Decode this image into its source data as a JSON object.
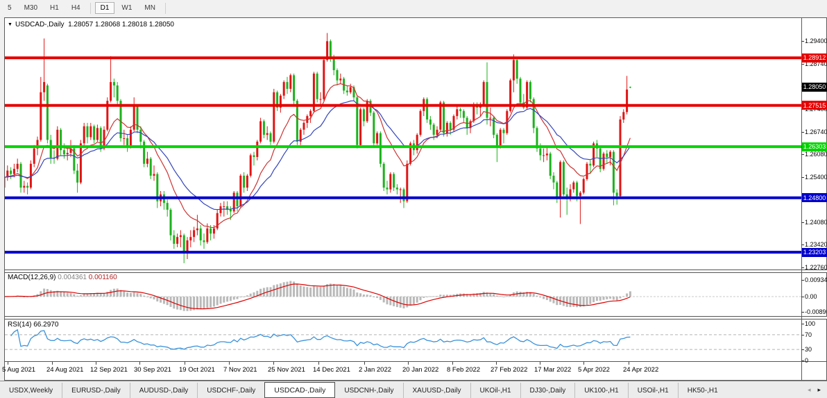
{
  "toolbar": {
    "timeframes": [
      {
        "label": "5",
        "active": false
      },
      {
        "label": "M30",
        "active": false
      },
      {
        "label": "H1",
        "active": false
      },
      {
        "label": "H4",
        "active": false
      },
      {
        "label": "D1",
        "active": true
      },
      {
        "label": "W1",
        "active": false
      },
      {
        "label": "MN",
        "active": false
      }
    ]
  },
  "icons": {
    "symbol_dropdown": "▼",
    "tabs_scroll_left": "◂",
    "tabs_scroll_right": "▸"
  },
  "chart": {
    "title_text": "USDCAD-,Daily",
    "ohlc_text": "1.28057 1.28068 1.28018 1.28050"
  },
  "tabs": {
    "items": [
      {
        "label": "USDX,Weekly",
        "active": false
      },
      {
        "label": "EURUSD-,Daily",
        "active": false
      },
      {
        "label": "AUDUSD-,Daily",
        "active": false
      },
      {
        "label": "USDCHF-,Daily",
        "active": false
      },
      {
        "label": "USDCAD-,Daily",
        "active": true
      },
      {
        "label": "USDCNH-,Daily",
        "active": false
      },
      {
        "label": "XAUUSD-,Daily",
        "active": false
      },
      {
        "label": "UKOil-,H1",
        "active": false
      },
      {
        "label": "DJ30-,Daily",
        "active": false
      },
      {
        "label": "UK100-,H1",
        "active": false
      },
      {
        "label": "USOil-,H1",
        "active": false
      },
      {
        "label": "HK50-,H1",
        "active": false
      }
    ]
  },
  "chart_data": {
    "type": "candlestick",
    "symbol": "USDCAD-",
    "timeframe": "Daily",
    "last_bar_ohlc": {
      "open": 1.28057,
      "high": 1.28068,
      "low": 1.28018,
      "close": 1.2805
    },
    "colors": {
      "bull_candle": "#e01414",
      "bear_candle": "#1cb21c",
      "ma_fast": "#cc3333",
      "ma_slow": "#3344bb",
      "macd_histogram": "#b9b9b9",
      "macd_signal": "#dd0000",
      "rsi_line": "#3a92da",
      "level_red": "#e60000",
      "level_green": "#00d400",
      "level_blue": "#0000cc",
      "current_price_badge": "#000000"
    },
    "price_axis_ticks": [
      "1.29400",
      "1.28740",
      "1.28080",
      "1.27400",
      "1.26740",
      "1.26080",
      "1.25400",
      "1.24740",
      "1.24080",
      "1.23420",
      "1.22760"
    ],
    "levels": [
      {
        "label": "1.28912",
        "value": 1.28912,
        "color": "#e60000"
      },
      {
        "label": "1.27515",
        "value": 1.27515,
        "color": "#e60000"
      },
      {
        "label": "1.26303",
        "value": 1.26303,
        "color": "#00d400"
      },
      {
        "label": "1.24800",
        "value": 1.248,
        "color": "#0000cc"
      },
      {
        "label": "1.23203",
        "value": 1.23203,
        "color": "#0000cc"
      }
    ],
    "current_price": {
      "label": "1.28050",
      "value": 1.2805
    },
    "date_labels": [
      "5 Aug 2021",
      "24 Aug 2021",
      "12 Sep 2021",
      "30 Sep 2021",
      "19 Oct 2021",
      "7 Nov 2021",
      "25 Nov 2021",
      "14 Dec 2021",
      "2 Jan 2022",
      "20 Jan 2022",
      "8 Feb 2022",
      "27 Feb 2022",
      "17 Mar 2022",
      "5 Apr 2022",
      "24 Apr 2022"
    ],
    "overlays": [
      {
        "name": "ma-fast",
        "method": "ema",
        "period": 13,
        "color": "#cc3333"
      },
      {
        "name": "ma-slow",
        "method": "ema",
        "period": 26,
        "color": "#3344bb"
      }
    ],
    "indicators": [
      {
        "name": "MACD",
        "label": "MACD(12,26,9)",
        "params": [
          12,
          26,
          9
        ],
        "value_main": "0.004361",
        "value_signal": "0.001160",
        "axis": {
          "top": "0.009345",
          "zero": "0.00",
          "bottom": "-0.008907"
        },
        "axis_values": {
          "top": 0.009345,
          "zero": 0,
          "bottom": -0.008907
        }
      },
      {
        "name": "RSI",
        "label": "RSI(14)",
        "params": [
          14
        ],
        "value": "66.2970",
        "axis": [
          "100",
          "70",
          "30",
          "0"
        ],
        "axis_values": [
          100,
          70,
          30,
          0
        ],
        "dashed_levels": [
          70,
          30
        ]
      }
    ],
    "candles": [
      [
        1.251,
        1.2555,
        1.25,
        1.254
      ],
      [
        1.254,
        1.2575,
        1.253,
        1.256
      ],
      [
        1.256,
        1.257,
        1.2535,
        1.255
      ],
      [
        1.255,
        1.258,
        1.254,
        1.2565
      ],
      [
        1.2565,
        1.2595,
        1.2555,
        1.258
      ],
      [
        1.258,
        1.2585,
        1.2495,
        1.251
      ],
      [
        1.251,
        1.253,
        1.2495,
        1.2515
      ],
      [
        1.2515,
        1.2525,
        1.249,
        1.251
      ],
      [
        1.251,
        1.259,
        1.2505,
        1.258
      ],
      [
        1.258,
        1.2635,
        1.257,
        1.2625
      ],
      [
        1.2625,
        1.266,
        1.2605,
        1.265
      ],
      [
        1.265,
        1.2835,
        1.2645,
        1.279
      ],
      [
        1.279,
        1.2948,
        1.2765,
        1.282
      ],
      [
        1.281,
        1.2815,
        1.264,
        1.265
      ],
      [
        1.265,
        1.2665,
        1.258,
        1.2598
      ],
      [
        1.2598,
        1.262,
        1.258,
        1.2595
      ],
      [
        1.2595,
        1.269,
        1.259,
        1.268
      ],
      [
        1.268,
        1.2685,
        1.2605,
        1.262
      ],
      [
        1.262,
        1.264,
        1.2595,
        1.2608
      ],
      [
        1.2608,
        1.263,
        1.259,
        1.2612
      ],
      [
        1.2612,
        1.265,
        1.26,
        1.2625
      ],
      [
        1.2625,
        1.2635,
        1.255,
        1.256
      ],
      [
        1.256,
        1.258,
        1.2495,
        1.2525
      ],
      [
        1.2525,
        1.265,
        1.252,
        1.264
      ],
      [
        1.264,
        1.27,
        1.263,
        1.269
      ],
      [
        1.269,
        1.27,
        1.264,
        1.2658
      ],
      [
        1.2658,
        1.27,
        1.265,
        1.269
      ],
      [
        1.269,
        1.2695,
        1.264,
        1.265
      ],
      [
        1.265,
        1.2695,
        1.2645,
        1.2685
      ],
      [
        1.2685,
        1.269,
        1.2615,
        1.2625
      ],
      [
        1.2625,
        1.269,
        1.262,
        1.268
      ],
      [
        1.268,
        1.2775,
        1.2675,
        1.2765
      ],
      [
        1.2765,
        1.2896,
        1.276,
        1.282
      ],
      [
        1.282,
        1.283,
        1.2775,
        1.281
      ],
      [
        1.281,
        1.282,
        1.275,
        1.2765
      ],
      [
        1.2765,
        1.277,
        1.2645,
        1.2655
      ],
      [
        1.2655,
        1.268,
        1.2635,
        1.2655
      ],
      [
        1.2655,
        1.2665,
        1.2615,
        1.263
      ],
      [
        1.263,
        1.269,
        1.2625,
        1.268
      ],
      [
        1.268,
        1.2775,
        1.2675,
        1.275
      ],
      [
        1.275,
        1.2755,
        1.267,
        1.268
      ],
      [
        1.268,
        1.269,
        1.2625,
        1.2645
      ],
      [
        1.2645,
        1.265,
        1.257,
        1.258
      ],
      [
        1.258,
        1.2615,
        1.257,
        1.2595
      ],
      [
        1.2595,
        1.26,
        1.2535,
        1.2545
      ],
      [
        1.2545,
        1.2575,
        1.253,
        1.255
      ],
      [
        1.255,
        1.2555,
        1.245,
        1.247
      ],
      [
        1.247,
        1.25,
        1.2455,
        1.249
      ],
      [
        1.249,
        1.25,
        1.2445,
        1.2465
      ],
      [
        1.2465,
        1.2475,
        1.2425,
        1.2445
      ],
      [
        1.2445,
        1.245,
        1.2355,
        1.237
      ],
      [
        1.237,
        1.2385,
        1.233,
        1.2345
      ],
      [
        1.2345,
        1.2375,
        1.2335,
        1.2365
      ],
      [
        1.2365,
        1.2385,
        1.2335,
        1.237
      ],
      [
        1.237,
        1.2375,
        1.2288,
        1.232
      ],
      [
        1.232,
        1.2365,
        1.23,
        1.2355
      ],
      [
        1.2355,
        1.2385,
        1.2335,
        1.2365
      ],
      [
        1.2365,
        1.2395,
        1.235,
        1.2385
      ],
      [
        1.2385,
        1.243,
        1.237,
        1.239
      ],
      [
        1.239,
        1.24,
        1.234,
        1.2355
      ],
      [
        1.2355,
        1.2375,
        1.233,
        1.235
      ],
      [
        1.235,
        1.2405,
        1.2345,
        1.239
      ],
      [
        1.239,
        1.24,
        1.2355,
        1.2375
      ],
      [
        1.2375,
        1.24,
        1.236,
        1.239
      ],
      [
        1.239,
        1.2445,
        1.2385,
        1.2435
      ],
      [
        1.2435,
        1.2465,
        1.2425,
        1.2455
      ],
      [
        1.2455,
        1.247,
        1.2425,
        1.2455
      ],
      [
        1.2455,
        1.247,
        1.243,
        1.2445
      ],
      [
        1.2445,
        1.2455,
        1.2415,
        1.244
      ],
      [
        1.244,
        1.25,
        1.2435,
        1.2495
      ],
      [
        1.2495,
        1.25,
        1.244,
        1.2455
      ],
      [
        1.2455,
        1.255,
        1.245,
        1.2545
      ],
      [
        1.2545,
        1.2555,
        1.2495,
        1.251
      ],
      [
        1.251,
        1.255,
        1.25,
        1.2545
      ],
      [
        1.2545,
        1.261,
        1.254,
        1.2605
      ],
      [
        1.2605,
        1.2615,
        1.2575,
        1.26
      ],
      [
        1.26,
        1.265,
        1.259,
        1.2645
      ],
      [
        1.2645,
        1.2715,
        1.264,
        1.2705
      ],
      [
        1.2705,
        1.271,
        1.2655,
        1.2665
      ],
      [
        1.2665,
        1.269,
        1.265,
        1.267
      ],
      [
        1.267,
        1.2675,
        1.2635,
        1.2645
      ],
      [
        1.2645,
        1.28,
        1.264,
        1.279
      ],
      [
        1.279,
        1.2795,
        1.2735,
        1.2745
      ],
      [
        1.2745,
        1.2785,
        1.273,
        1.278
      ],
      [
        1.278,
        1.2825,
        1.277,
        1.282
      ],
      [
        1.282,
        1.2835,
        1.2785,
        1.28
      ],
      [
        1.28,
        1.2845,
        1.279,
        1.284
      ],
      [
        1.284,
        1.2845,
        1.2755,
        1.2765
      ],
      [
        1.2765,
        1.277,
        1.2635,
        1.2645
      ],
      [
        1.2645,
        1.2685,
        1.2635,
        1.268
      ],
      [
        1.268,
        1.2705,
        1.2665,
        1.27
      ],
      [
        1.27,
        1.2725,
        1.2685,
        1.272
      ],
      [
        1.272,
        1.274,
        1.27,
        1.2735
      ],
      [
        1.2735,
        1.285,
        1.273,
        1.2845
      ],
      [
        1.2845,
        1.285,
        1.276,
        1.277
      ],
      [
        1.277,
        1.279,
        1.2755,
        1.277
      ],
      [
        1.277,
        1.289,
        1.2765,
        1.2885
      ],
      [
        1.2885,
        1.2964,
        1.288,
        1.294
      ],
      [
        1.294,
        1.2945,
        1.288,
        1.2895
      ],
      [
        1.2895,
        1.29,
        1.284,
        1.2855
      ],
      [
        1.2855,
        1.286,
        1.281,
        1.2825
      ],
      [
        1.2825,
        1.2845,
        1.2815,
        1.283
      ],
      [
        1.283,
        1.2835,
        1.2785,
        1.2795
      ],
      [
        1.2795,
        1.281,
        1.278,
        1.279
      ],
      [
        1.279,
        1.2815,
        1.2785,
        1.2805
      ],
      [
        1.2805,
        1.281,
        1.2765,
        1.2775
      ],
      [
        1.2775,
        1.278,
        1.2625,
        1.2635
      ],
      [
        1.2635,
        1.2745,
        1.263,
        1.274
      ],
      [
        1.274,
        1.2745,
        1.269,
        1.2705
      ],
      [
        1.2705,
        1.277,
        1.27,
        1.2765
      ],
      [
        1.2765,
        1.277,
        1.272,
        1.273
      ],
      [
        1.273,
        1.2735,
        1.263,
        1.264
      ],
      [
        1.264,
        1.2675,
        1.2635,
        1.267
      ],
      [
        1.267,
        1.2675,
        1.257,
        1.258
      ],
      [
        1.258,
        1.2585,
        1.25,
        1.251
      ],
      [
        1.251,
        1.253,
        1.249,
        1.2505
      ],
      [
        1.2505,
        1.2555,
        1.2495,
        1.255
      ],
      [
        1.255,
        1.2555,
        1.25,
        1.251
      ],
      [
        1.251,
        1.252,
        1.249,
        1.2505
      ],
      [
        1.2505,
        1.251,
        1.2465,
        1.2505
      ],
      [
        1.2505,
        1.251,
        1.245,
        1.247
      ],
      [
        1.247,
        1.259,
        1.2465,
        1.258
      ],
      [
        1.258,
        1.2645,
        1.2575,
        1.264
      ],
      [
        1.264,
        1.265,
        1.2605,
        1.262
      ],
      [
        1.262,
        1.267,
        1.261,
        1.2665
      ],
      [
        1.2665,
        1.274,
        1.266,
        1.2735
      ],
      [
        1.2735,
        1.2775,
        1.272,
        1.277
      ],
      [
        1.277,
        1.2775,
        1.27,
        1.271
      ],
      [
        1.271,
        1.272,
        1.268,
        1.2695
      ],
      [
        1.2695,
        1.27,
        1.265,
        1.2665
      ],
      [
        1.2665,
        1.269,
        1.2655,
        1.268
      ],
      [
        1.268,
        1.2765,
        1.2675,
        1.276
      ],
      [
        1.276,
        1.2765,
        1.266,
        1.267
      ],
      [
        1.267,
        1.2705,
        1.266,
        1.27
      ],
      [
        1.27,
        1.2705,
        1.2665,
        1.268
      ],
      [
        1.268,
        1.2725,
        1.2675,
        1.272
      ],
      [
        1.272,
        1.275,
        1.271,
        1.274
      ],
      [
        1.274,
        1.2745,
        1.2715,
        1.2735
      ],
      [
        1.2735,
        1.274,
        1.27,
        1.2715
      ],
      [
        1.2715,
        1.272,
        1.2665,
        1.2685
      ],
      [
        1.2685,
        1.271,
        1.267,
        1.2705
      ],
      [
        1.2705,
        1.276,
        1.27,
        1.2755
      ],
      [
        1.2755,
        1.276,
        1.2725,
        1.2745
      ],
      [
        1.2745,
        1.276,
        1.272,
        1.2755
      ],
      [
        1.2755,
        1.2825,
        1.275,
        1.282
      ],
      [
        1.282,
        1.2878,
        1.2695,
        1.2715
      ],
      [
        1.2715,
        1.2745,
        1.269,
        1.2715
      ],
      [
        1.2715,
        1.272,
        1.2655,
        1.2665
      ],
      [
        1.2665,
        1.267,
        1.2585,
        1.263
      ],
      [
        1.263,
        1.2685,
        1.2625,
        1.268
      ],
      [
        1.268,
        1.2685,
        1.264,
        1.267
      ],
      [
        1.267,
        1.274,
        1.2665,
        1.2735
      ],
      [
        1.2735,
        1.283,
        1.273,
        1.2825
      ],
      [
        1.2825,
        1.2901,
        1.279,
        1.2885
      ],
      [
        1.2885,
        1.289,
        1.2815,
        1.283
      ],
      [
        1.283,
        1.2835,
        1.275,
        1.276
      ],
      [
        1.276,
        1.2785,
        1.274,
        1.2745
      ],
      [
        1.2745,
        1.2825,
        1.274,
        1.282
      ],
      [
        1.282,
        1.2825,
        1.276,
        1.277
      ],
      [
        1.277,
        1.2775,
        1.267,
        1.2685
      ],
      [
        1.2685,
        1.269,
        1.2615,
        1.2625
      ],
      [
        1.2625,
        1.264,
        1.259,
        1.2605
      ],
      [
        1.2605,
        1.2625,
        1.2585,
        1.2605
      ],
      [
        1.2605,
        1.263,
        1.259,
        1.261
      ],
      [
        1.261,
        1.2615,
        1.2535,
        1.2545
      ],
      [
        1.2545,
        1.2555,
        1.2505,
        1.2525
      ],
      [
        1.2525,
        1.253,
        1.2465,
        1.248
      ],
      [
        1.248,
        1.259,
        1.2422,
        1.2585
      ],
      [
        1.2585,
        1.259,
        1.2485,
        1.249
      ],
      [
        1.249,
        1.251,
        1.243,
        1.248
      ],
      [
        1.248,
        1.252,
        1.247,
        1.2505
      ],
      [
        1.2505,
        1.253,
        1.2495,
        1.2525
      ],
      [
        1.2525,
        1.253,
        1.247,
        1.2485
      ],
      [
        1.2485,
        1.25,
        1.2403,
        1.2495
      ],
      [
        1.2495,
        1.254,
        1.249,
        1.2535
      ],
      [
        1.2535,
        1.2585,
        1.253,
        1.258
      ],
      [
        1.258,
        1.259,
        1.255,
        1.2575
      ],
      [
        1.2575,
        1.2645,
        1.257,
        1.264
      ],
      [
        1.264,
        1.265,
        1.26,
        1.2625
      ],
      [
        1.2625,
        1.263,
        1.2555,
        1.2565
      ],
      [
        1.2565,
        1.2615,
        1.256,
        1.261
      ],
      [
        1.261,
        1.262,
        1.258,
        1.26
      ],
      [
        1.26,
        1.262,
        1.2575,
        1.2615
      ],
      [
        1.2615,
        1.262,
        1.2458,
        1.2495
      ],
      [
        1.2495,
        1.2505,
        1.246,
        1.2485
      ],
      [
        1.2485,
        1.272,
        1.248,
        1.271
      ],
      [
        1.271,
        1.274,
        1.27,
        1.2732
      ],
      [
        1.2732,
        1.2838,
        1.2725,
        1.2798
      ],
      [
        1.28057,
        1.28068,
        1.28018,
        1.2805
      ]
    ]
  }
}
